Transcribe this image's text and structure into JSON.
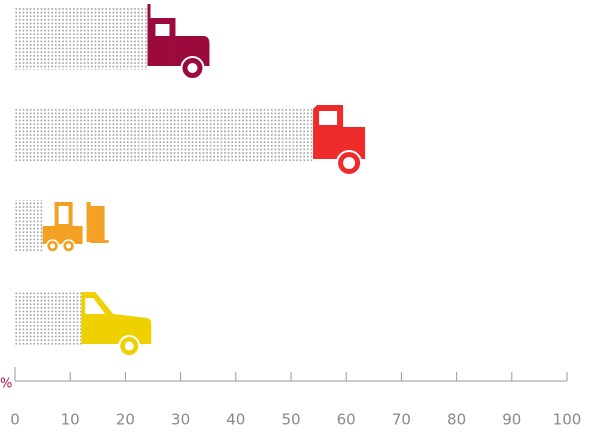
{
  "chart_data": {
    "type": "bar",
    "orientation": "horizontal",
    "categories": [
      null,
      null,
      null,
      null
    ],
    "values": [
      24,
      54,
      5,
      12
    ],
    "colors": [
      "#9b0a3c",
      "#ee2a2a",
      "#f4a023",
      "#efd000"
    ],
    "x_label": "%",
    "xlim": [
      0,
      100
    ],
    "xticks": [
      0,
      10,
      20,
      30,
      40,
      50,
      60,
      70,
      80,
      90,
      100
    ]
  }
}
